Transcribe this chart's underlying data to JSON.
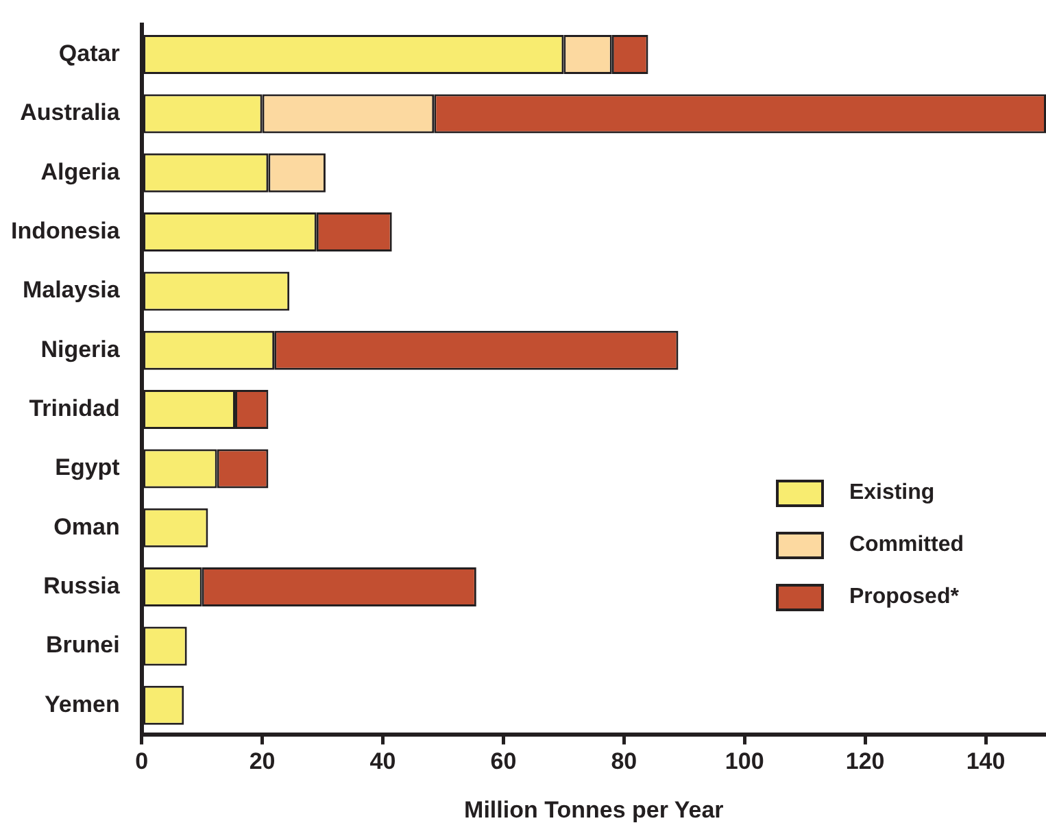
{
  "chart_data": {
    "type": "bar",
    "orientation": "horizontal",
    "stacked": true,
    "xlabel": "Million Tonnes per Year",
    "categories": [
      "Qatar",
      "Australia",
      "Algeria",
      "Indonesia",
      "Malaysia",
      "Nigeria",
      "Trinidad",
      "Egypt",
      "Oman",
      "Russia",
      "Brunei",
      "Yemen"
    ],
    "series": [
      {
        "name": "Existing",
        "color": "#f8ec70",
        "values": [
          70,
          20,
          21,
          29,
          24.5,
          22,
          15.5,
          12.5,
          11,
          10,
          7.5,
          7
        ]
      },
      {
        "name": "Committed",
        "color": "#fcd9a0",
        "values": [
          8,
          28.5,
          9.5,
          null,
          null,
          null,
          null,
          null,
          null,
          null,
          null,
          null
        ]
      },
      {
        "name": "Proposed*",
        "color": "#c24f31",
        "values": [
          6,
          101.5,
          null,
          12.5,
          null,
          67,
          5.5,
          8.5,
          null,
          45.5,
          null,
          null
        ]
      }
    ],
    "xlim": [
      0,
      150
    ],
    "xticks": [
      0,
      20,
      40,
      60,
      80,
      100,
      120,
      140
    ],
    "grid": false,
    "legend": "bottom right"
  }
}
